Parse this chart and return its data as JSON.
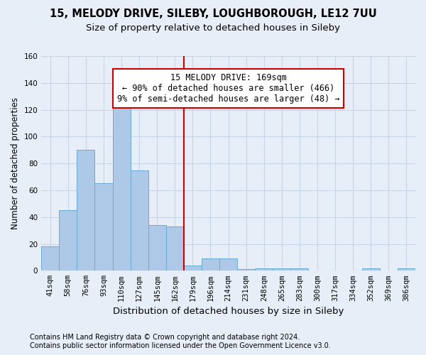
{
  "title_line1": "15, MELODY DRIVE, SILEBY, LOUGHBOROUGH, LE12 7UU",
  "title_line2": "Size of property relative to detached houses in Sileby",
  "xlabel": "Distribution of detached houses by size in Sileby",
  "ylabel": "Number of detached properties",
  "bar_labels": [
    "41sqm",
    "58sqm",
    "76sqm",
    "93sqm",
    "110sqm",
    "127sqm",
    "145sqm",
    "162sqm",
    "179sqm",
    "196sqm",
    "214sqm",
    "231sqm",
    "248sqm",
    "265sqm",
    "283sqm",
    "300sqm",
    "317sqm",
    "334sqm",
    "352sqm",
    "369sqm",
    "386sqm"
  ],
  "bar_values": [
    18,
    45,
    90,
    65,
    130,
    75,
    34,
    33,
    4,
    9,
    9,
    1,
    2,
    2,
    2,
    0,
    0,
    0,
    2,
    0,
    2
  ],
  "bar_color": "#aec9e8",
  "bar_edge_color": "#6aaad4",
  "ylim": [
    0,
    160
  ],
  "yticks": [
    0,
    20,
    40,
    60,
    80,
    100,
    120,
    140,
    160
  ],
  "annotation_box_text": "15 MELODY DRIVE: 169sqm\n← 90% of detached houses are smaller (466)\n9% of semi-detached houses are larger (48) →",
  "vline_bar_index": 7.5,
  "annotation_box_color": "#ffffff",
  "annotation_box_edge_color": "#cc0000",
  "vline_color": "#cc0000",
  "grid_color": "#c8d4e8",
  "background_color": "#e8eef8",
  "footer_line1": "Contains HM Land Registry data © Crown copyright and database right 2024.",
  "footer_line2": "Contains public sector information licensed under the Open Government Licence v3.0.",
  "title_fontsize": 10.5,
  "subtitle_fontsize": 9.5,
  "annotation_fontsize": 8.5,
  "ylabel_fontsize": 8.5,
  "xlabel_fontsize": 9.5,
  "tick_fontsize": 7.5,
  "footer_fontsize": 7
}
